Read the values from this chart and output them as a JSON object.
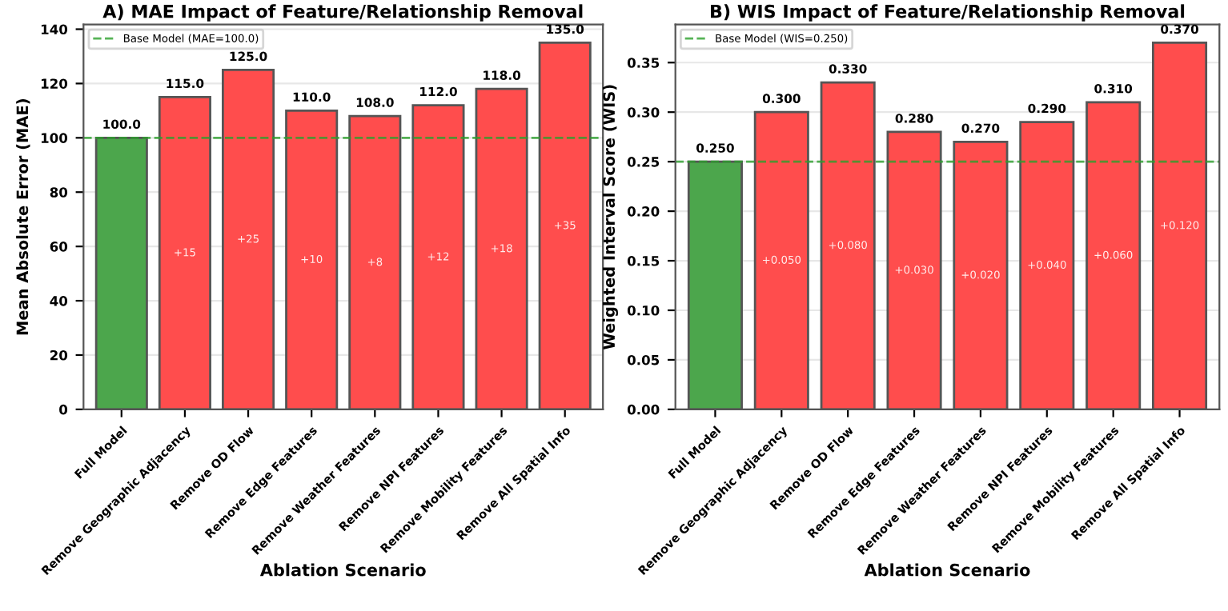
{
  "chart_data": [
    {
      "type": "bar",
      "title": "A) MAE Impact of Feature/Relationship Removal",
      "xlabel": "Ablation Scenario",
      "ylabel": "Mean Absolute Error (MAE)",
      "categories": [
        "Full Model",
        "Remove Geographic Adjacency",
        "Remove OD Flow",
        "Remove Edge Features",
        "Remove Weather Features",
        "Remove NPI Features",
        "Remove Mobility Features",
        "Remove All Spatial Info"
      ],
      "values": [
        100.0,
        115.0,
        125.0,
        110.0,
        108.0,
        112.0,
        118.0,
        135.0
      ],
      "colors": [
        "#4ca64c",
        "#ff4d4d",
        "#ff4d4d",
        "#ff4d4d",
        "#ff4d4d",
        "#ff4d4d",
        "#ff4d4d",
        "#ff4d4d"
      ],
      "value_labels": [
        "100.0",
        "115.0",
        "125.0",
        "110.0",
        "108.0",
        "112.0",
        "118.0",
        "135.0"
      ],
      "annotations": [
        "+15",
        "+25",
        "+10",
        "+8",
        "+12",
        "+18",
        "+35"
      ],
      "ref_lines": [
        {
          "axis": "y",
          "value": 100.0,
          "label": "Base Model (MAE=100.0)",
          "color": "#2ca02c",
          "line_style": "dashed"
        }
      ],
      "ylim": [
        0,
        141.75
      ],
      "yticks": [
        0,
        20,
        40,
        60,
        80,
        100,
        120,
        140
      ],
      "grid": "y",
      "legend": "top left"
    },
    {
      "type": "bar",
      "title": "B) WIS Impact of Feature/Relationship Removal",
      "xlabel": "Ablation Scenario",
      "ylabel": "Weighted Interval Score (WIS)",
      "categories": [
        "Full Model",
        "Remove Geographic Adjacency",
        "Remove OD Flow",
        "Remove Edge Features",
        "Remove Weather Features",
        "Remove NPI Features",
        "Remove Mobility Features",
        "Remove All Spatial Info"
      ],
      "values": [
        0.25,
        0.3,
        0.33,
        0.28,
        0.27,
        0.29,
        0.31,
        0.37
      ],
      "colors": [
        "#4ca64c",
        "#ff4d4d",
        "#ff4d4d",
        "#ff4d4d",
        "#ff4d4d",
        "#ff4d4d",
        "#ff4d4d",
        "#ff4d4d"
      ],
      "value_labels": [
        "0.250",
        "0.300",
        "0.330",
        "0.280",
        "0.270",
        "0.290",
        "0.310",
        "0.370"
      ],
      "annotations": [
        "+0.050",
        "+0.080",
        "+0.030",
        "+0.020",
        "+0.040",
        "+0.060",
        "+0.120"
      ],
      "ref_lines": [
        {
          "axis": "y",
          "value": 0.25,
          "label": "Base Model (WIS=0.250)",
          "color": "#2ca02c",
          "line_style": "dashed"
        }
      ],
      "ylim": [
        0,
        0.3885
      ],
      "yticks": [
        {
          "value": 0.0,
          "label": "0.00"
        },
        {
          "value": 0.05,
          "label": "0.05"
        },
        {
          "value": 0.1,
          "label": "0.10"
        },
        {
          "value": 0.15,
          "label": "0.15"
        },
        {
          "value": 0.2,
          "label": "0.20"
        },
        {
          "value": 0.25,
          "label": "0.25"
        },
        {
          "value": 0.3,
          "label": "0.30"
        },
        {
          "value": 0.35,
          "label": "0.35"
        }
      ],
      "grid": "y",
      "legend": "top left"
    }
  ]
}
